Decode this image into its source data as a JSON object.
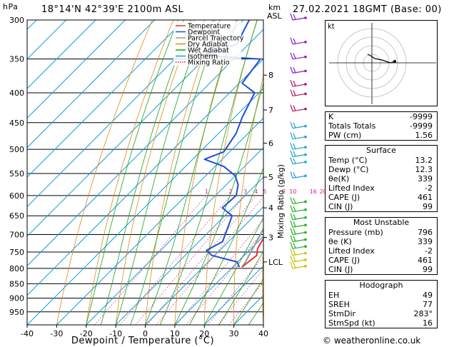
{
  "header": {
    "hpa_label": "hPa",
    "location": "18°14'N  42°39'E  2100m  ASL",
    "km_label": "km",
    "asl_label": "ASL",
    "datetime": "27.02.2021  18GMT  (Base: 00)"
  },
  "chart_data": {
    "type": "skew-t",
    "xlabel": "Dewpoint / Temperature (°C)",
    "ylabel_right": "Mixing Ratio (g/kg)",
    "x_ticks": [
      -40,
      -30,
      -20,
      -10,
      0,
      10,
      20,
      30,
      40
    ],
    "pressure_levels": [
      300,
      350,
      400,
      450,
      500,
      550,
      600,
      650,
      700,
      750,
      800,
      850,
      900,
      950
    ],
    "xlim": [
      -40,
      40
    ],
    "ylim_hpa": [
      1000,
      300
    ],
    "height_km_ticks": [
      {
        "label": "8",
        "p": 373
      },
      {
        "label": "7",
        "p": 428
      },
      {
        "label": "6",
        "p": 488
      },
      {
        "label": "5",
        "p": 558
      },
      {
        "label": "4",
        "p": 630
      },
      {
        "label": "3",
        "p": 708
      },
      {
        "label": "LCL",
        "p": 780
      }
    ],
    "mixing_ratio_labels": [
      "1",
      "2",
      "3",
      "4",
      "5",
      "8",
      "10",
      "16",
      "20",
      "25"
    ],
    "mixing_ratio_values": [
      1,
      2,
      3,
      4,
      5,
      8,
      10,
      16,
      20,
      25
    ],
    "legend": [
      "Temperature",
      "Dewpoint",
      "Parcel Trajectory",
      "Dry Adiabat",
      "Wet Adiabat",
      "Isotherm",
      "Mixing Ratio"
    ],
    "legend_colors": [
      "#e8342c",
      "#1f4fd6",
      "#9a9a9a",
      "#e08a1a",
      "#1aa01a",
      "#16a0d8",
      "#d0208a"
    ],
    "temperature": [
      {
        "p": 796,
        "t": 13.2
      },
      {
        "p": 780,
        "t": 13.6
      },
      {
        "p": 760,
        "t": 14.2
      },
      {
        "p": 740,
        "t": 12.2
      },
      {
        "p": 700,
        "t": 10.2
      },
      {
        "p": 650,
        "t": 6.6
      },
      {
        "p": 600,
        "t": 2.8
      },
      {
        "p": 550,
        "t": -1.8
      },
      {
        "p": 500,
        "t": -6.8
      },
      {
        "p": 450,
        "t": -12.6
      },
      {
        "p": 400,
        "t": -19.6
      },
      {
        "p": 370,
        "t": -24.4
      },
      {
        "p": 350,
        "t": -27.0
      },
      {
        "p": 345,
        "t": -26.6
      }
    ],
    "dewpoint": [
      {
        "p": 796,
        "t": 12.3
      },
      {
        "p": 780,
        "t": 9.8
      },
      {
        "p": 760,
        "t": -1.0
      },
      {
        "p": 745,
        "t": -4.5
      },
      {
        "p": 720,
        "t": -2.0
      },
      {
        "p": 700,
        "t": -3.5
      },
      {
        "p": 650,
        "t": -7.5
      },
      {
        "p": 630,
        "t": -13.5
      },
      {
        "p": 600,
        "t": -13.0
      },
      {
        "p": 575,
        "t": -16.0
      },
      {
        "p": 555,
        "t": -20.0
      },
      {
        "p": 535,
        "t": -27.0
      },
      {
        "p": 520,
        "t": -36.0
      },
      {
        "p": 505,
        "t": -32.0
      },
      {
        "p": 470,
        "t": -34.0
      },
      {
        "p": 440,
        "t": -37.5
      },
      {
        "p": 400,
        "t": -41.5
      },
      {
        "p": 385,
        "t": -49.0
      },
      {
        "p": 350,
        "t": -51.0
      },
      {
        "p": 345,
        "t": -72.0
      },
      {
        "p": 330,
        "t": -64.0
      },
      {
        "p": 300,
        "t": -68.0
      }
    ],
    "parcel": [
      {
        "p": 796,
        "t": 13.2
      },
      {
        "p": 780,
        "t": 12.6
      },
      {
        "p": 700,
        "t": 8.4
      },
      {
        "p": 600,
        "t": 2.0
      },
      {
        "p": 500,
        "t": -5.4
      },
      {
        "p": 400,
        "t": -15.6
      },
      {
        "p": 350,
        "t": -22.5
      },
      {
        "p": 300,
        "t": -31.0
      }
    ]
  },
  "hodograph": {
    "label": "kt"
  },
  "indices": {
    "rows": [
      {
        "label": "K",
        "value": "-9999"
      },
      {
        "label": "Totals Totals",
        "value": "-9999"
      },
      {
        "label": "PW (cm)",
        "value": "1.56"
      }
    ]
  },
  "surface": {
    "title": "Surface",
    "rows": [
      {
        "label": "Temp (°C)",
        "value": "13.2"
      },
      {
        "label": "Dewp (°C)",
        "value": "12.3"
      },
      {
        "label": "θe(K)",
        "value": "339"
      },
      {
        "label": "Lifted Index",
        "value": "-2"
      },
      {
        "label": "CAPE (J)",
        "value": "461"
      },
      {
        "label": "CIN (J)",
        "value": "99"
      }
    ]
  },
  "most_unstable": {
    "title": "Most Unstable",
    "rows": [
      {
        "label": "Pressure (mb)",
        "value": "796"
      },
      {
        "label": "θe (K)",
        "value": "339"
      },
      {
        "label": "Lifted Index",
        "value": "-2"
      },
      {
        "label": "CAPE (J)",
        "value": "461"
      },
      {
        "label": "CIN (J)",
        "value": "99"
      }
    ]
  },
  "hodograph_stats": {
    "title": "Hodograph",
    "rows": [
      {
        "label": "EH",
        "value": "49"
      },
      {
        "label": "SREH",
        "value": "77"
      },
      {
        "label": "StmDir",
        "value": "283°"
      },
      {
        "label": "StmSpd (kt)",
        "value": "16"
      }
    ]
  },
  "credit": "© weatheronline.co.uk"
}
